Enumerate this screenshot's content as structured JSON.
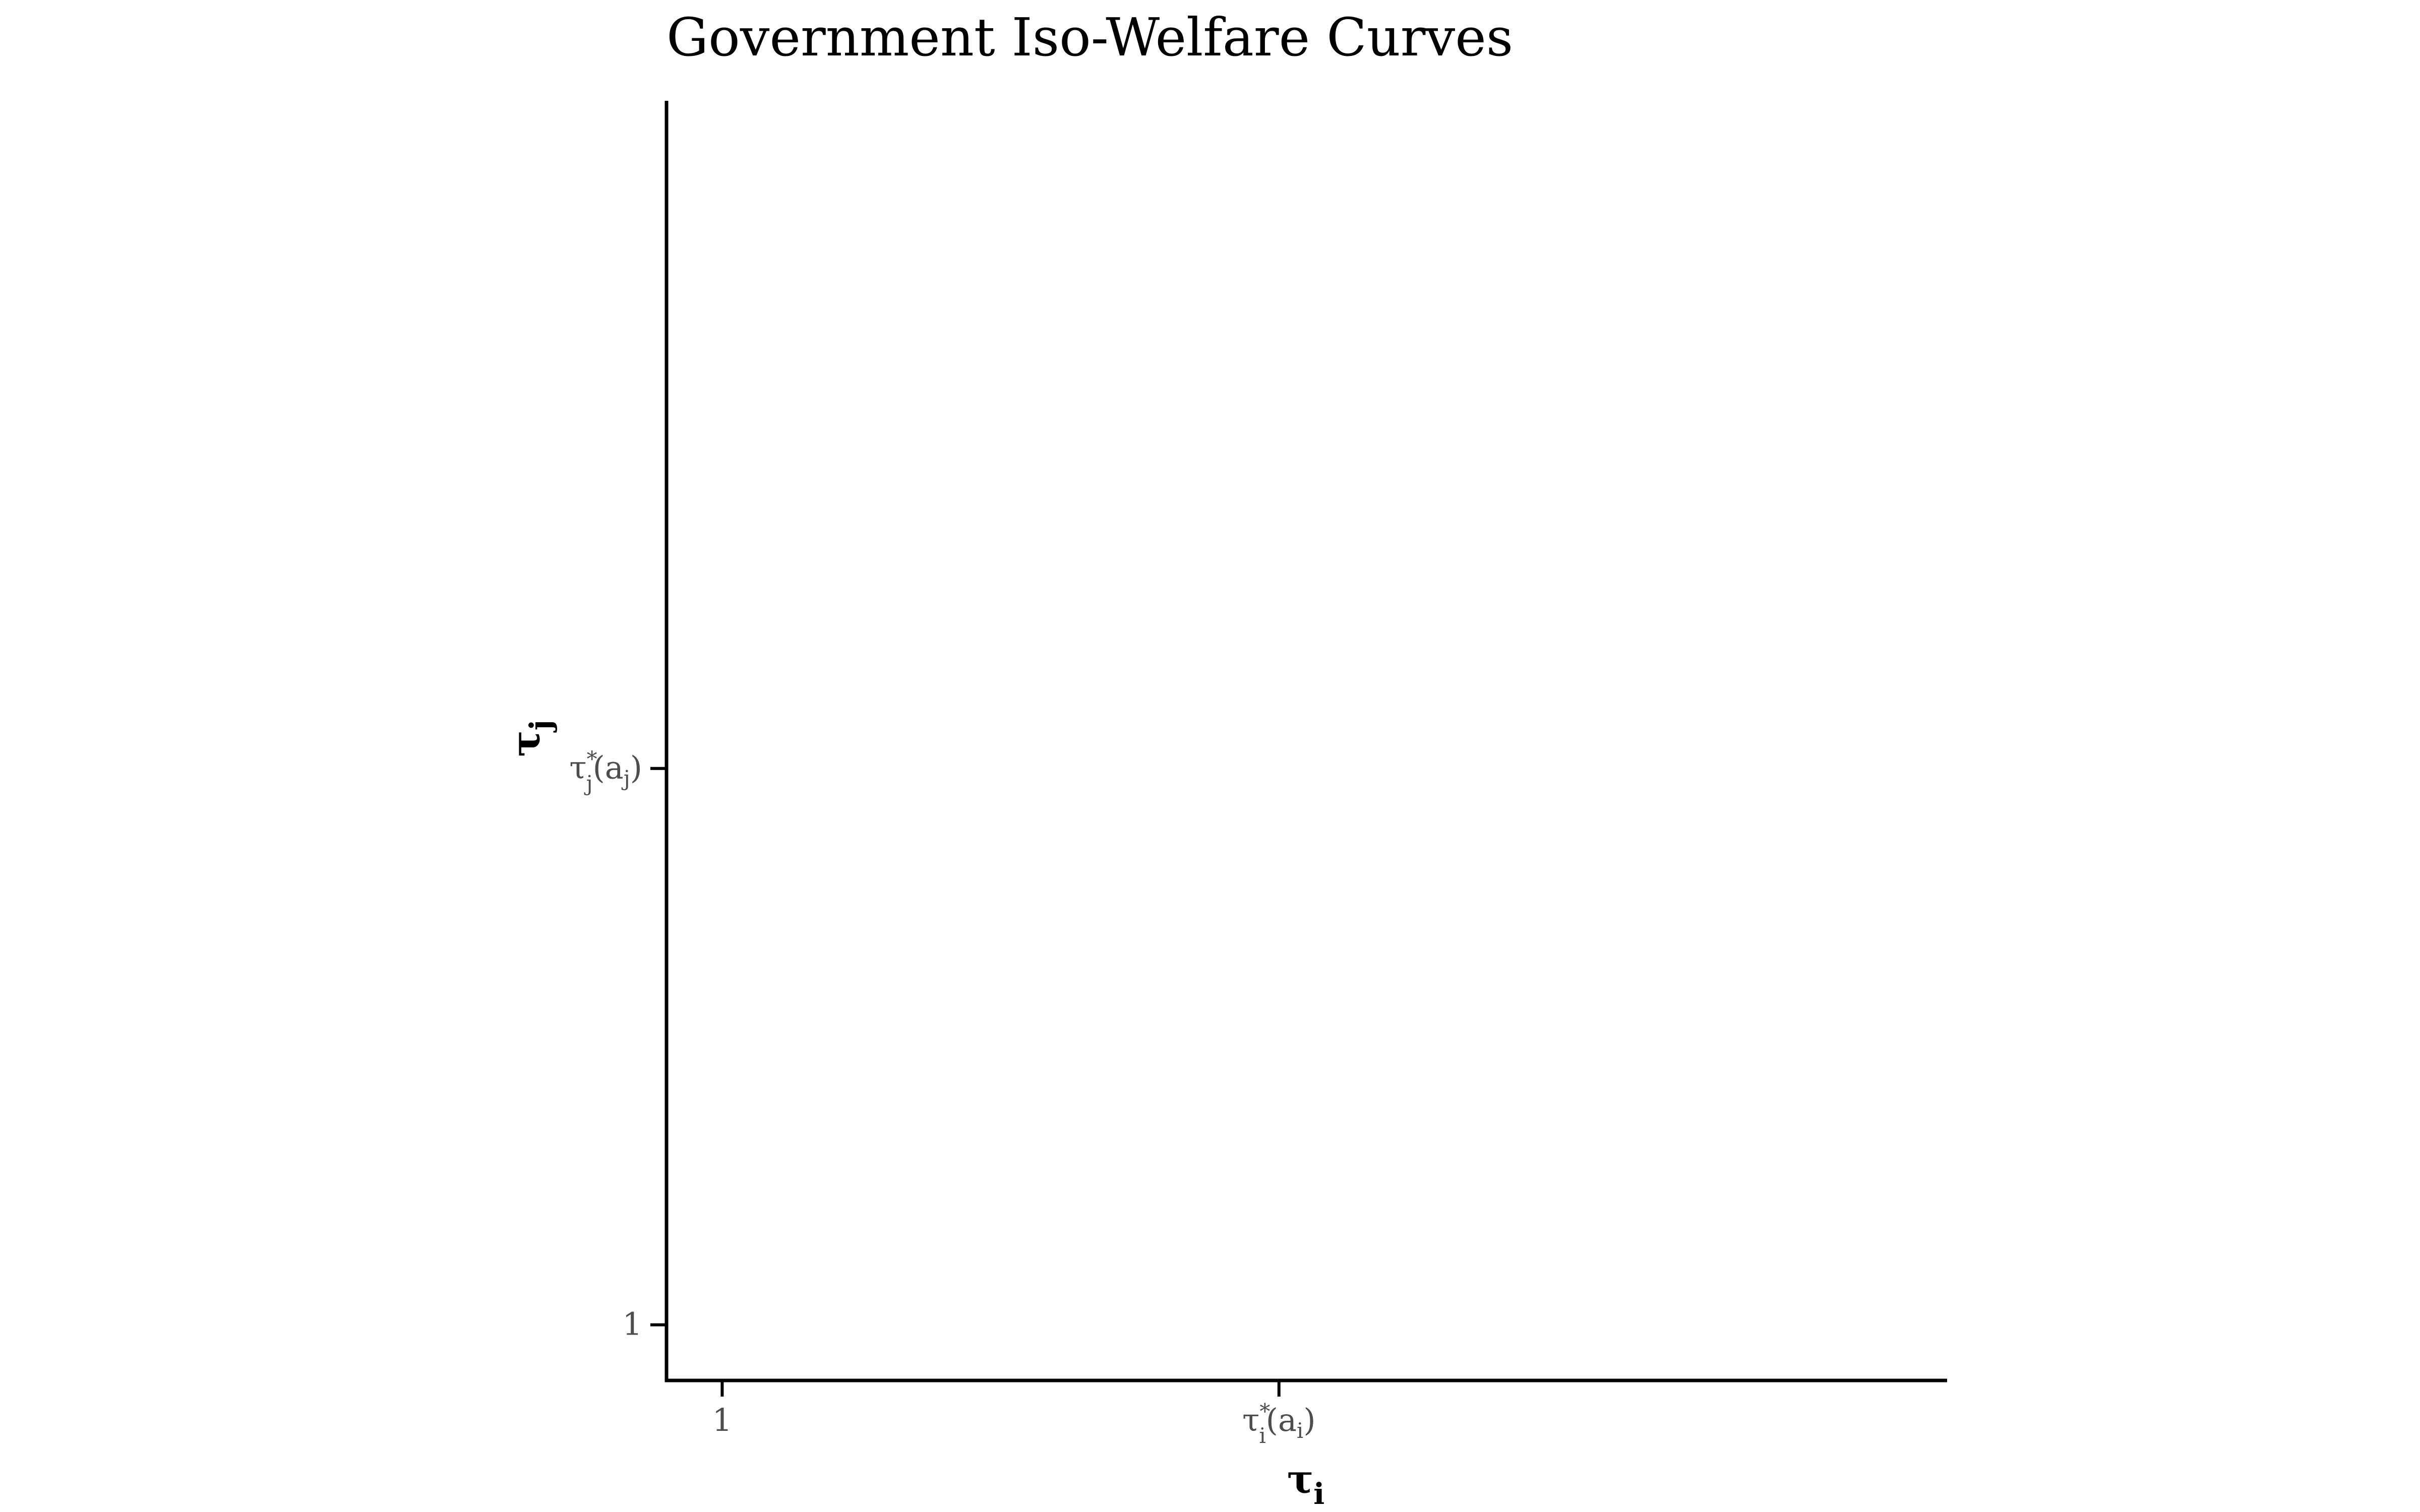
{
  "chart_data": {
    "type": "line",
    "title": "Government Iso-Welfare Curves",
    "xlabel": {
      "base": "τ",
      "sub": "i"
    },
    "ylabel": {
      "base": "τ",
      "sub": "j"
    },
    "x_ticks": [
      {
        "value": 1,
        "base": "1",
        "sup": "",
        "sub": "",
        "arg": ""
      },
      {
        "value": 2,
        "base": "τ",
        "sup": "*",
        "sub": "i",
        "arg_open": "(a",
        "arg_sub": "i",
        "arg_close": ")"
      }
    ],
    "y_ticks": [
      {
        "value": 1,
        "base": "1",
        "sup": "",
        "sub": "",
        "arg": ""
      },
      {
        "value": 2,
        "base": "τ",
        "sup": "*",
        "sub": "j",
        "arg_open": "(a",
        "arg_sub": "j",
        "arg_close": ")"
      }
    ],
    "xlim": [
      0.9,
      3.2
    ],
    "ylim": [
      0.9,
      3.2
    ],
    "series": [],
    "grid": false,
    "legend": "none"
  }
}
